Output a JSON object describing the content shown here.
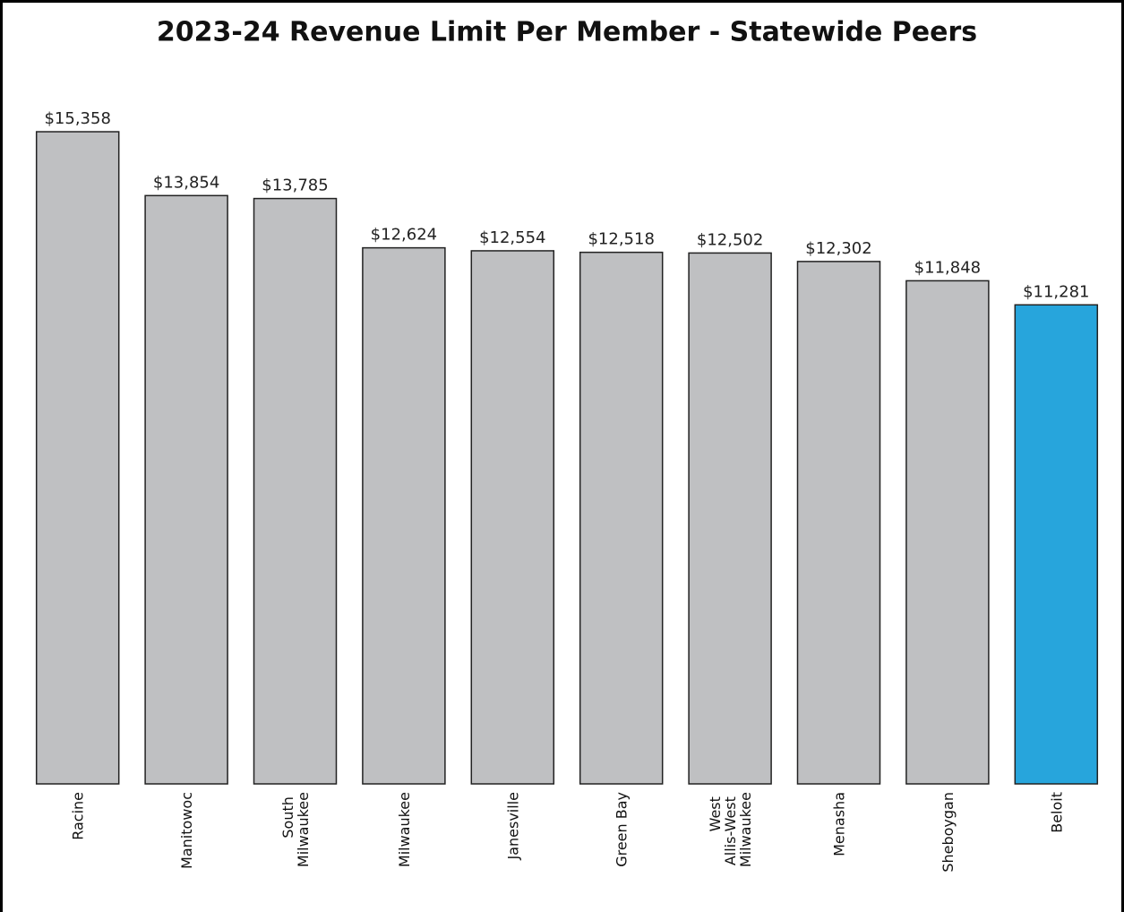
{
  "chart_data": {
    "type": "bar",
    "title": "2023-24 Revenue Limit Per Member - Statewide Peers",
    "categories": [
      "Racine",
      "Manitowoc",
      "South Milwaukee",
      "Milwaukee",
      "Janesville",
      "Green Bay",
      "West Allis-West Milwaukee",
      "Menasha",
      "Sheboygan",
      "Beloit"
    ],
    "values": [
      15358,
      13854,
      13785,
      12624,
      12554,
      12518,
      12502,
      12302,
      11848,
      11281
    ],
    "value_labels": [
      "$15,358",
      "$13,854",
      "$13,785",
      "$12,624",
      "$12,554",
      "$12,518",
      "$12,502",
      "$12,302",
      "$11,848",
      "$11,281"
    ],
    "colors": [
      "#bfc0c2",
      "#bfc0c2",
      "#bfc0c2",
      "#bfc0c2",
      "#bfc0c2",
      "#bfc0c2",
      "#bfc0c2",
      "#bfc0c2",
      "#bfc0c2",
      "#27a5dc"
    ],
    "ylim": [
      0,
      16000
    ]
  }
}
